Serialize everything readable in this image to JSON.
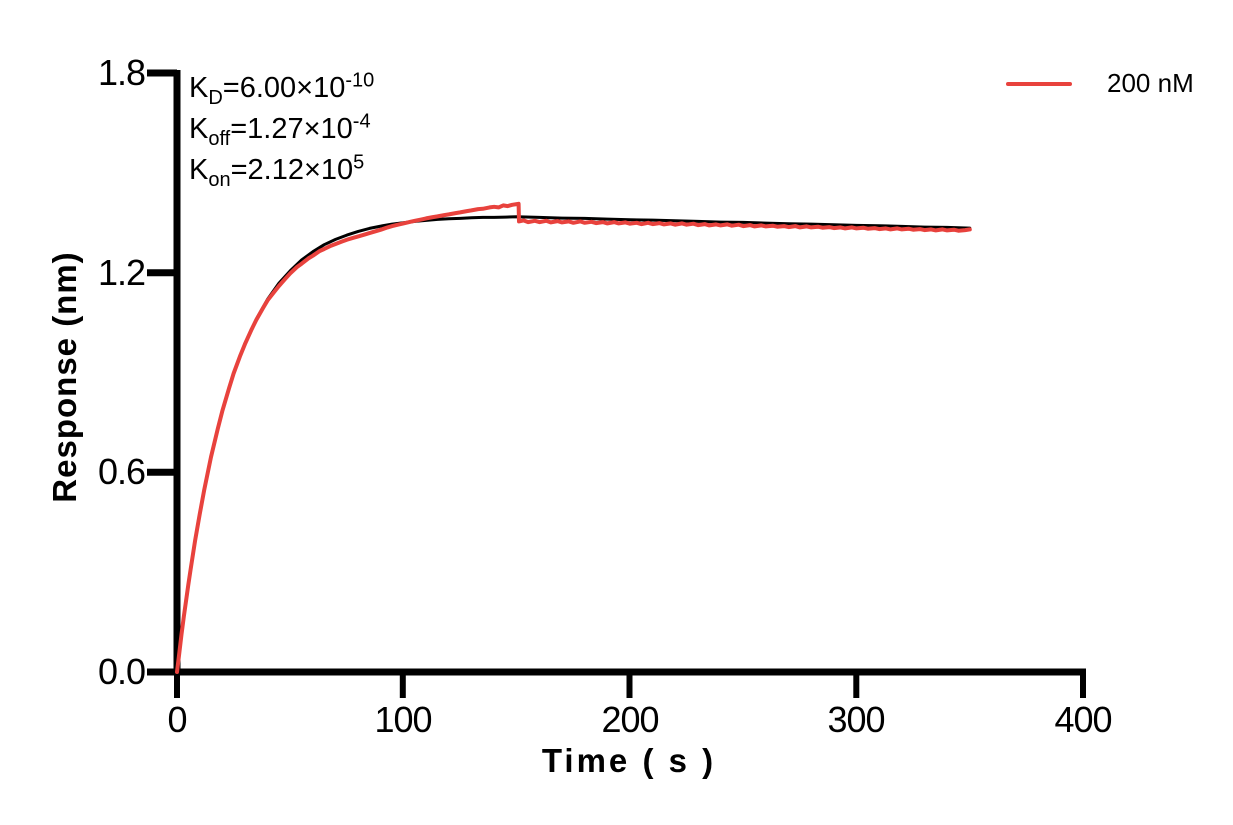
{
  "chart_data": {
    "type": "line",
    "title": "",
    "xlabel": "Time ( s )",
    "ylabel": "Response (nm)",
    "xlim": [
      0,
      400
    ],
    "ylim": [
      0,
      1.8
    ],
    "x_ticks": [
      0,
      100,
      200,
      300,
      400
    ],
    "y_ticks": [
      0,
      0.6,
      1.2,
      1.8
    ],
    "x_tick_labels": [
      "0",
      "100",
      "200",
      "300",
      "400"
    ],
    "y_tick_labels": [
      "1.8",
      "1.2",
      "0.6",
      "0.0"
    ],
    "grid": false,
    "legend_position": "top-right",
    "legend": {
      "label": "200 nM",
      "color": "#e8423d"
    },
    "axis_color": "#000000",
    "annotations": [
      {
        "base": "K",
        "sub": "D",
        "body": "=6.00×10",
        "sup": "-10"
      },
      {
        "base": "K",
        "sub": "off",
        "body": "=1.27×10",
        "sup": "-4"
      },
      {
        "base": "K",
        "sub": "on",
        "body": "=2.12×10",
        "sup": "5"
      }
    ],
    "series": [
      {
        "name": "fit",
        "color": "#000000",
        "width": 3,
        "points": [
          [
            0,
            0
          ],
          [
            1,
            0.057
          ],
          [
            2,
            0.112
          ],
          [
            3,
            0.164
          ],
          [
            4,
            0.214
          ],
          [
            5,
            0.262
          ],
          [
            6,
            0.308
          ],
          [
            8,
            0.395
          ],
          [
            10,
            0.474
          ],
          [
            12,
            0.547
          ],
          [
            15,
            0.646
          ],
          [
            18,
            0.731
          ],
          [
            20,
            0.784
          ],
          [
            25,
            0.897
          ],
          [
            30,
            0.987
          ],
          [
            35,
            1.06
          ],
          [
            40,
            1.12
          ],
          [
            45,
            1.168
          ],
          [
            50,
            1.206
          ],
          [
            55,
            1.238
          ],
          [
            60,
            1.263
          ],
          [
            65,
            1.284
          ],
          [
            70,
            1.3
          ],
          [
            75,
            1.313
          ],
          [
            80,
            1.324
          ],
          [
            85,
            1.333
          ],
          [
            90,
            1.34
          ],
          [
            95,
            1.346
          ],
          [
            100,
            1.35
          ],
          [
            105,
            1.354
          ],
          [
            110,
            1.357
          ],
          [
            115,
            1.36
          ],
          [
            120,
            1.362
          ],
          [
            125,
            1.363
          ],
          [
            130,
            1.365
          ],
          [
            135,
            1.366
          ],
          [
            140,
            1.366
          ],
          [
            145,
            1.367
          ],
          [
            150,
            1.368
          ],
          [
            160,
            1.366
          ],
          [
            170,
            1.364
          ],
          [
            180,
            1.363
          ],
          [
            190,
            1.361
          ],
          [
            200,
            1.359
          ],
          [
            210,
            1.358
          ],
          [
            220,
            1.356
          ],
          [
            230,
            1.354
          ],
          [
            240,
            1.352
          ],
          [
            250,
            1.351
          ],
          [
            260,
            1.349
          ],
          [
            270,
            1.347
          ],
          [
            280,
            1.346
          ],
          [
            290,
            1.344
          ],
          [
            300,
            1.342
          ],
          [
            310,
            1.341
          ],
          [
            320,
            1.339
          ],
          [
            330,
            1.337
          ],
          [
            340,
            1.336
          ],
          [
            350,
            1.334
          ]
        ]
      },
      {
        "name": "200 nM",
        "color": "#e8423d",
        "width": 4,
        "points": [
          [
            0,
            0
          ],
          [
            1,
            0.057
          ],
          [
            2,
            0.113
          ],
          [
            3,
            0.166
          ],
          [
            4,
            0.215
          ],
          [
            5,
            0.262
          ],
          [
            6,
            0.308
          ],
          [
            8,
            0.395
          ],
          [
            10,
            0.474
          ],
          [
            12,
            0.547
          ],
          [
            15,
            0.646
          ],
          [
            18,
            0.731
          ],
          [
            20,
            0.784
          ],
          [
            23,
            0.853
          ],
          [
            25,
            0.897
          ],
          [
            28,
            0.952
          ],
          [
            30,
            0.985
          ],
          [
            33,
            1.03
          ],
          [
            35,
            1.058
          ],
          [
            38,
            1.094
          ],
          [
            40,
            1.117
          ],
          [
            43,
            1.143
          ],
          [
            45,
            1.16
          ],
          [
            48,
            1.183
          ],
          [
            50,
            1.198
          ],
          [
            53,
            1.217
          ],
          [
            55,
            1.227
          ],
          [
            58,
            1.243
          ],
          [
            60,
            1.251
          ],
          [
            63,
            1.265
          ],
          [
            65,
            1.271
          ],
          [
            68,
            1.281
          ],
          [
            70,
            1.286
          ],
          [
            73,
            1.294
          ],
          [
            75,
            1.299
          ],
          [
            78,
            1.305
          ],
          [
            80,
            1.309
          ],
          [
            83,
            1.315
          ],
          [
            85,
            1.319
          ],
          [
            88,
            1.325
          ],
          [
            90,
            1.329
          ],
          [
            93,
            1.336
          ],
          [
            95,
            1.34
          ],
          [
            98,
            1.345
          ],
          [
            100,
            1.348
          ],
          [
            103,
            1.353
          ],
          [
            105,
            1.356
          ],
          [
            108,
            1.36
          ],
          [
            110,
            1.363
          ],
          [
            113,
            1.367
          ],
          [
            115,
            1.369
          ],
          [
            118,
            1.373
          ],
          [
            120,
            1.375
          ],
          [
            123,
            1.379
          ],
          [
            125,
            1.381
          ],
          [
            128,
            1.385
          ],
          [
            130,
            1.387
          ],
          [
            133,
            1.391
          ],
          [
            135,
            1.392
          ],
          [
            138,
            1.396
          ],
          [
            140,
            1.398
          ],
          [
            142,
            1.396
          ],
          [
            144,
            1.402
          ],
          [
            146,
            1.4
          ],
          [
            148,
            1.404
          ],
          [
            150,
            1.406
          ],
          [
            150.8,
            1.407
          ],
          [
            151,
            1.354
          ],
          [
            153,
            1.357
          ],
          [
            155,
            1.352
          ],
          [
            158,
            1.356
          ],
          [
            160,
            1.352
          ],
          [
            163,
            1.356
          ],
          [
            165,
            1.351
          ],
          [
            168,
            1.355
          ],
          [
            170,
            1.351
          ],
          [
            173,
            1.354
          ],
          [
            175,
            1.35
          ],
          [
            178,
            1.354
          ],
          [
            180,
            1.35
          ],
          [
            183,
            1.353
          ],
          [
            185,
            1.349
          ],
          [
            188,
            1.352
          ],
          [
            190,
            1.348
          ],
          [
            193,
            1.352
          ],
          [
            195,
            1.348
          ],
          [
            198,
            1.351
          ],
          [
            200,
            1.347
          ],
          [
            203,
            1.35
          ],
          [
            205,
            1.346
          ],
          [
            208,
            1.35
          ],
          [
            210,
            1.346
          ],
          [
            213,
            1.349
          ],
          [
            215,
            1.345
          ],
          [
            218,
            1.348
          ],
          [
            220,
            1.344
          ],
          [
            223,
            1.348
          ],
          [
            225,
            1.344
          ],
          [
            228,
            1.347
          ],
          [
            230,
            1.343
          ],
          [
            233,
            1.346
          ],
          [
            235,
            1.342
          ],
          [
            238,
            1.345
          ],
          [
            240,
            1.342
          ],
          [
            243,
            1.345
          ],
          [
            245,
            1.341
          ],
          [
            248,
            1.344
          ],
          [
            250,
            1.34
          ],
          [
            253,
            1.343
          ],
          [
            255,
            1.339
          ],
          [
            258,
            1.342
          ],
          [
            260,
            1.339
          ],
          [
            263,
            1.341
          ],
          [
            265,
            1.338
          ],
          [
            268,
            1.34
          ],
          [
            270,
            1.337
          ],
          [
            273,
            1.34
          ],
          [
            275,
            1.336
          ],
          [
            278,
            1.339
          ],
          [
            280,
            1.336
          ],
          [
            283,
            1.338
          ],
          [
            285,
            1.335
          ],
          [
            288,
            1.337
          ],
          [
            290,
            1.334
          ],
          [
            293,
            1.336
          ],
          [
            295,
            1.333
          ],
          [
            298,
            1.336
          ],
          [
            300,
            1.333
          ],
          [
            303,
            1.335
          ],
          [
            305,
            1.332
          ],
          [
            308,
            1.334
          ],
          [
            310,
            1.331
          ],
          [
            313,
            1.333
          ],
          [
            315,
            1.33
          ],
          [
            318,
            1.333
          ],
          [
            320,
            1.33
          ],
          [
            323,
            1.332
          ],
          [
            325,
            1.329
          ],
          [
            328,
            1.331
          ],
          [
            330,
            1.328
          ],
          [
            333,
            1.33
          ],
          [
            335,
            1.327
          ],
          [
            338,
            1.33
          ],
          [
            340,
            1.327
          ],
          [
            343,
            1.329
          ],
          [
            345,
            1.326
          ],
          [
            348,
            1.328
          ],
          [
            350,
            1.33
          ]
        ]
      }
    ]
  }
}
